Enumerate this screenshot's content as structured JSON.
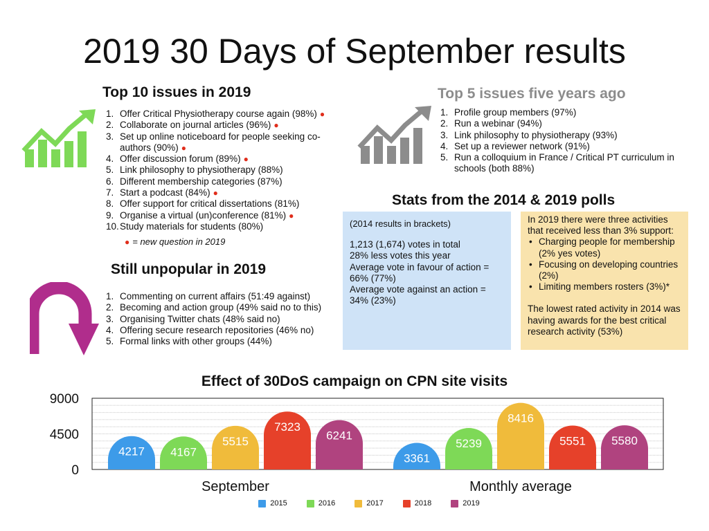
{
  "title": "2019 30 Days of September results",
  "colors": {
    "green": "#7ed957",
    "grey": "#8c8c8c",
    "magenta": "#b02d8c",
    "red_dot": "#e02d1b",
    "blue_box": "#cfe3f7",
    "yellow_box": "#f9e3ad"
  },
  "top10": {
    "heading": "Top 10 issues in 2019",
    "icon": "trending-up-icon",
    "items": [
      {
        "num": "1.",
        "text": "Offer Critical Physiotherapy course again (98%)",
        "new": true
      },
      {
        "num": "2.",
        "text": "Collaborate on journal articles (96%)",
        "new": true
      },
      {
        "num": "3.",
        "text": "Set up online noticeboard for people seeking co-authors (90%)",
        "new": true
      },
      {
        "num": "4.",
        "text": "Offer discussion forum (89%)",
        "new": true
      },
      {
        "num": "5.",
        "text": "Link philosophy to physiotherapy (88%)",
        "new": false
      },
      {
        "num": "6.",
        "text": "Different membership categories (87%)",
        "new": false
      },
      {
        "num": "7.",
        "text": "Start a podcast (84%)",
        "new": true
      },
      {
        "num": "8.",
        "text": "Offer support for critical dissertations (81%)",
        "new": false
      },
      {
        "num": "9.",
        "text": "Organise a virtual (un)conference (81%)",
        "new": true
      },
      {
        "num": "10.",
        "text": "Study materials for students (80%)",
        "new": false
      }
    ],
    "legend_note": "= new question in 2019"
  },
  "top5": {
    "heading": "Top 5 issues five years ago",
    "icon": "trending-up-icon",
    "items": [
      {
        "num": "1.",
        "text": "Profile group members (97%)"
      },
      {
        "num": "2.",
        "text": "Run a webinar (94%)"
      },
      {
        "num": "3.",
        "text": "Link philosophy to physiotherapy (93%)"
      },
      {
        "num": "4.",
        "text": "Set up a reviewer network (91%)"
      },
      {
        "num": "5.",
        "text": "Run a colloquium in France / Critical PT curriculum in schools (both 88%)"
      }
    ]
  },
  "unpopular": {
    "heading": "Still unpopular in 2019",
    "icon": "u-turn-arrow-icon",
    "items": [
      {
        "num": "1.",
        "text": "Commenting on current affairs (51:49 against)"
      },
      {
        "num": "2.",
        "text": "Becoming and action group (49% said no to this)"
      },
      {
        "num": "3.",
        "text": "Organising Twitter chats (48% said no)"
      },
      {
        "num": "4.",
        "text": "Offering secure research repositories (46% no)"
      },
      {
        "num": "5.",
        "text": "Formal links with other groups (44%)"
      }
    ]
  },
  "stats": {
    "heading": "Stats from the 2014 & 2019 polls",
    "blue_box": {
      "note": "(2014 results in brackets)",
      "lines": [
        "1,213 (1,674) votes in total",
        "28% less votes this year",
        "Average vote in favour of action = 66% (77%)",
        "Average vote against an action = 34% (23%)"
      ]
    },
    "yellow_box": {
      "intro": "In 2019 there were three activities that received less than 3% support:",
      "bullets": [
        "Charging people for membership (2% yes votes)",
        "Focusing on developing countries (2%)",
        "Limiting members rosters (3%)*"
      ],
      "outro": "The lowest rated activity in 2014 was having awards for the best critical research activity (53%)"
    }
  },
  "chart_data": {
    "type": "bar",
    "title": "Effect of 30DoS campaign on CPN site visits",
    "categories": [
      "September",
      "Monthly average"
    ],
    "series": [
      {
        "name": "2015",
        "color": "#3d9be9",
        "values": [
          4217,
          3361
        ]
      },
      {
        "name": "2016",
        "color": "#7ed957",
        "values": [
          4167,
          5239
        ]
      },
      {
        "name": "2017",
        "color": "#f0bb3b",
        "values": [
          5515,
          8416
        ]
      },
      {
        "name": "2018",
        "color": "#e6412a",
        "values": [
          7323,
          5551
        ]
      },
      {
        "name": "2019",
        "color": "#b0437f",
        "values": [
          6241,
          5580
        ]
      }
    ],
    "ylim": [
      0,
      9000
    ],
    "yticks": [
      0,
      4500,
      9000
    ],
    "grid": true,
    "legend": "bottom"
  }
}
